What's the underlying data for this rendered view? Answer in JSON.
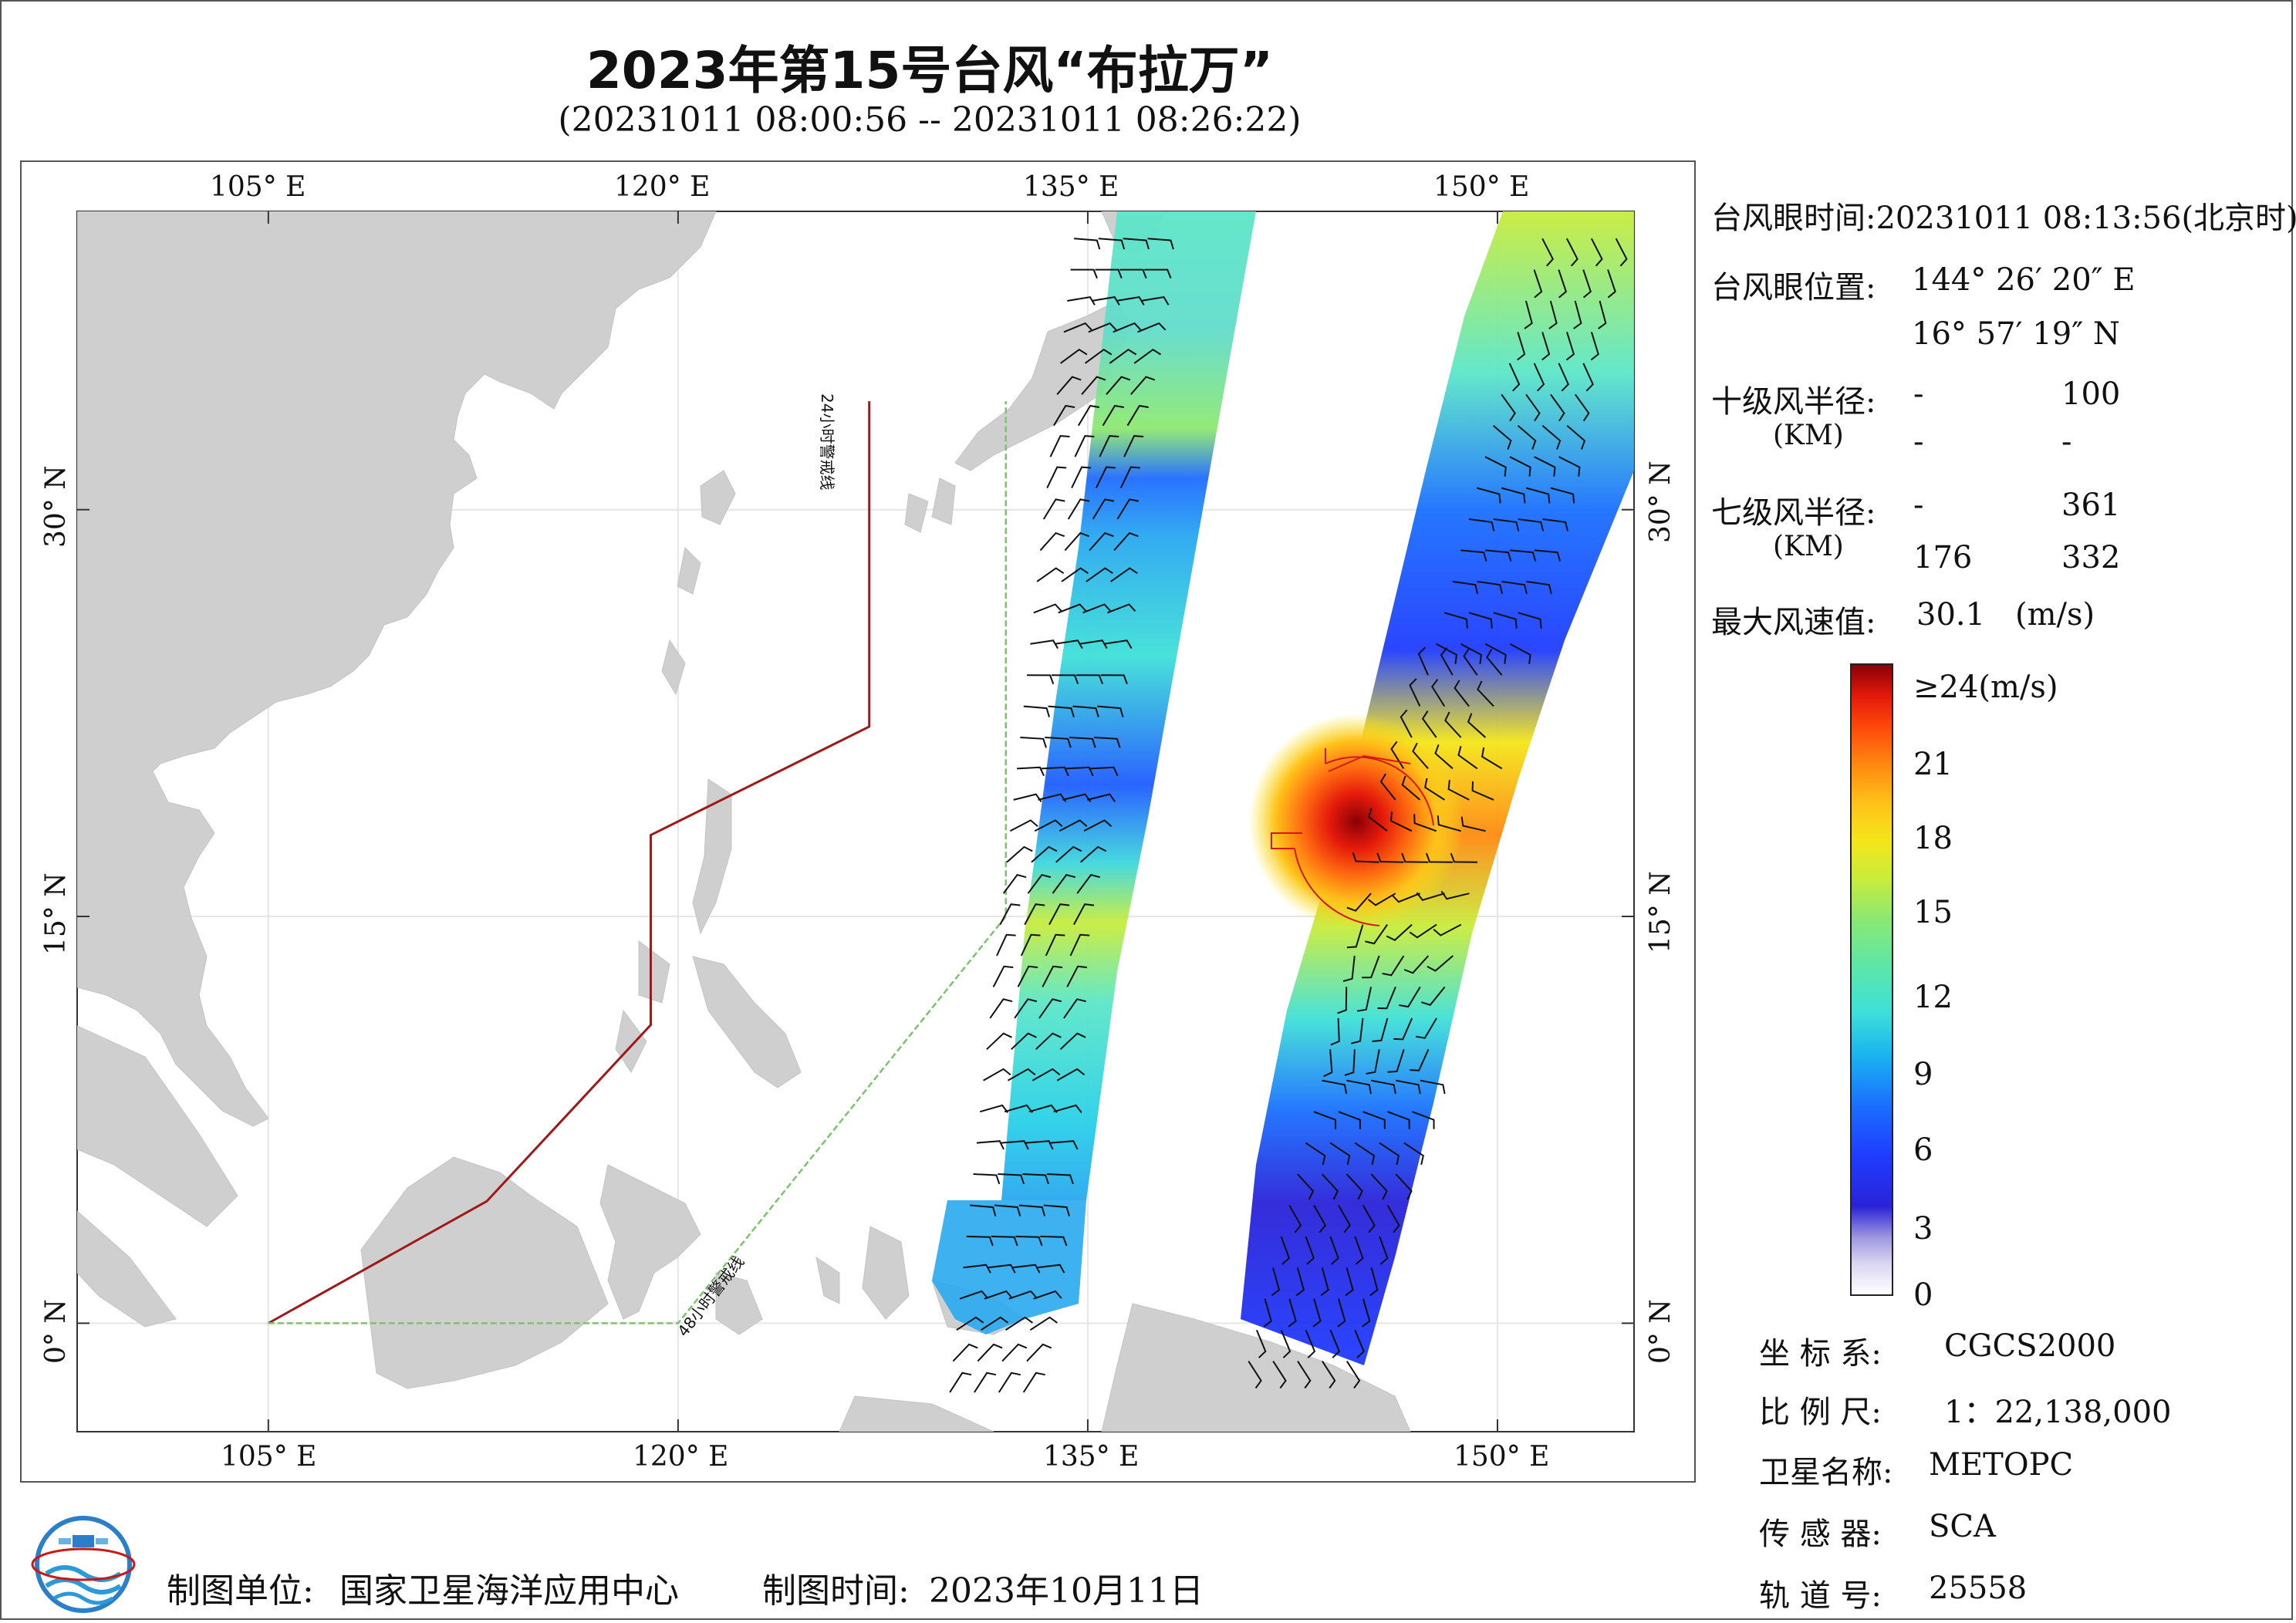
{
  "title": "2023年第15号台风“布拉万”",
  "subtitle": "(20231011 08:00:56 -- 20231011 08:26:22)",
  "map": {
    "lon_ticks_top": [
      "105° E",
      "120° E",
      "135° E",
      "150° E"
    ],
    "lon_ticks_bottom": [
      "105° E",
      "120° E",
      "135° E",
      "150° E"
    ],
    "lat_ticks_left": [
      "30° N",
      "15° N",
      "0° N"
    ],
    "lat_ticks_right": [
      "30° N",
      "15° N",
      "0° N"
    ],
    "lon_range": [
      98,
      155
    ],
    "lat_range": [
      -4,
      41
    ],
    "warning_line_24h": "24小时警戒线",
    "warning_line_48h": "48小时警戒线",
    "colors": {
      "land": "#cfcfcf",
      "ocean": "#ffffff",
      "warning24": "#a01818",
      "warning48": "#7cc46a",
      "radius_circle": "#d81818"
    }
  },
  "info": {
    "eye_time_label": "台风眼时间:",
    "eye_time_value": "20231011 08:13:56(北京时)",
    "eye_pos_label": "台风眼位置:",
    "eye_lon": "144° 26′ 20″ E",
    "eye_lat": "16° 57′ 19″ N",
    "r10_label": "十级风半径:",
    "r7_label": "七级风半径:",
    "unit_km": "(KM)",
    "r10_values": [
      "-",
      "100",
      "-",
      "-"
    ],
    "r7_values": [
      "-",
      "361",
      "176",
      "332"
    ],
    "max_wind_label": "最大风速值:",
    "max_wind_value": "30.1",
    "max_wind_unit": "(m/s)"
  },
  "colorbar": {
    "top_label": "≥24(m/s)",
    "labels": [
      "21",
      "18",
      "15",
      "12",
      "9",
      "6",
      "3",
      "0"
    ]
  },
  "meta": {
    "crs_label": "坐 标 系:",
    "crs_value": "CGCS2000",
    "scale_label": "比 例 尺:",
    "scale_value": "1：22,138,000",
    "satellite_label": "卫星名称:",
    "satellite_value": "METOPC",
    "sensor_label": "传 感 器:",
    "sensor_value": "SCA",
    "orbit_label": "轨 道 号:",
    "orbit_value": "25558"
  },
  "footer": {
    "producer_label": "制图单位:",
    "producer_value": "国家卫星海洋应用中心",
    "date_label": "制图时间:",
    "date_value": "2023年10月11日"
  }
}
